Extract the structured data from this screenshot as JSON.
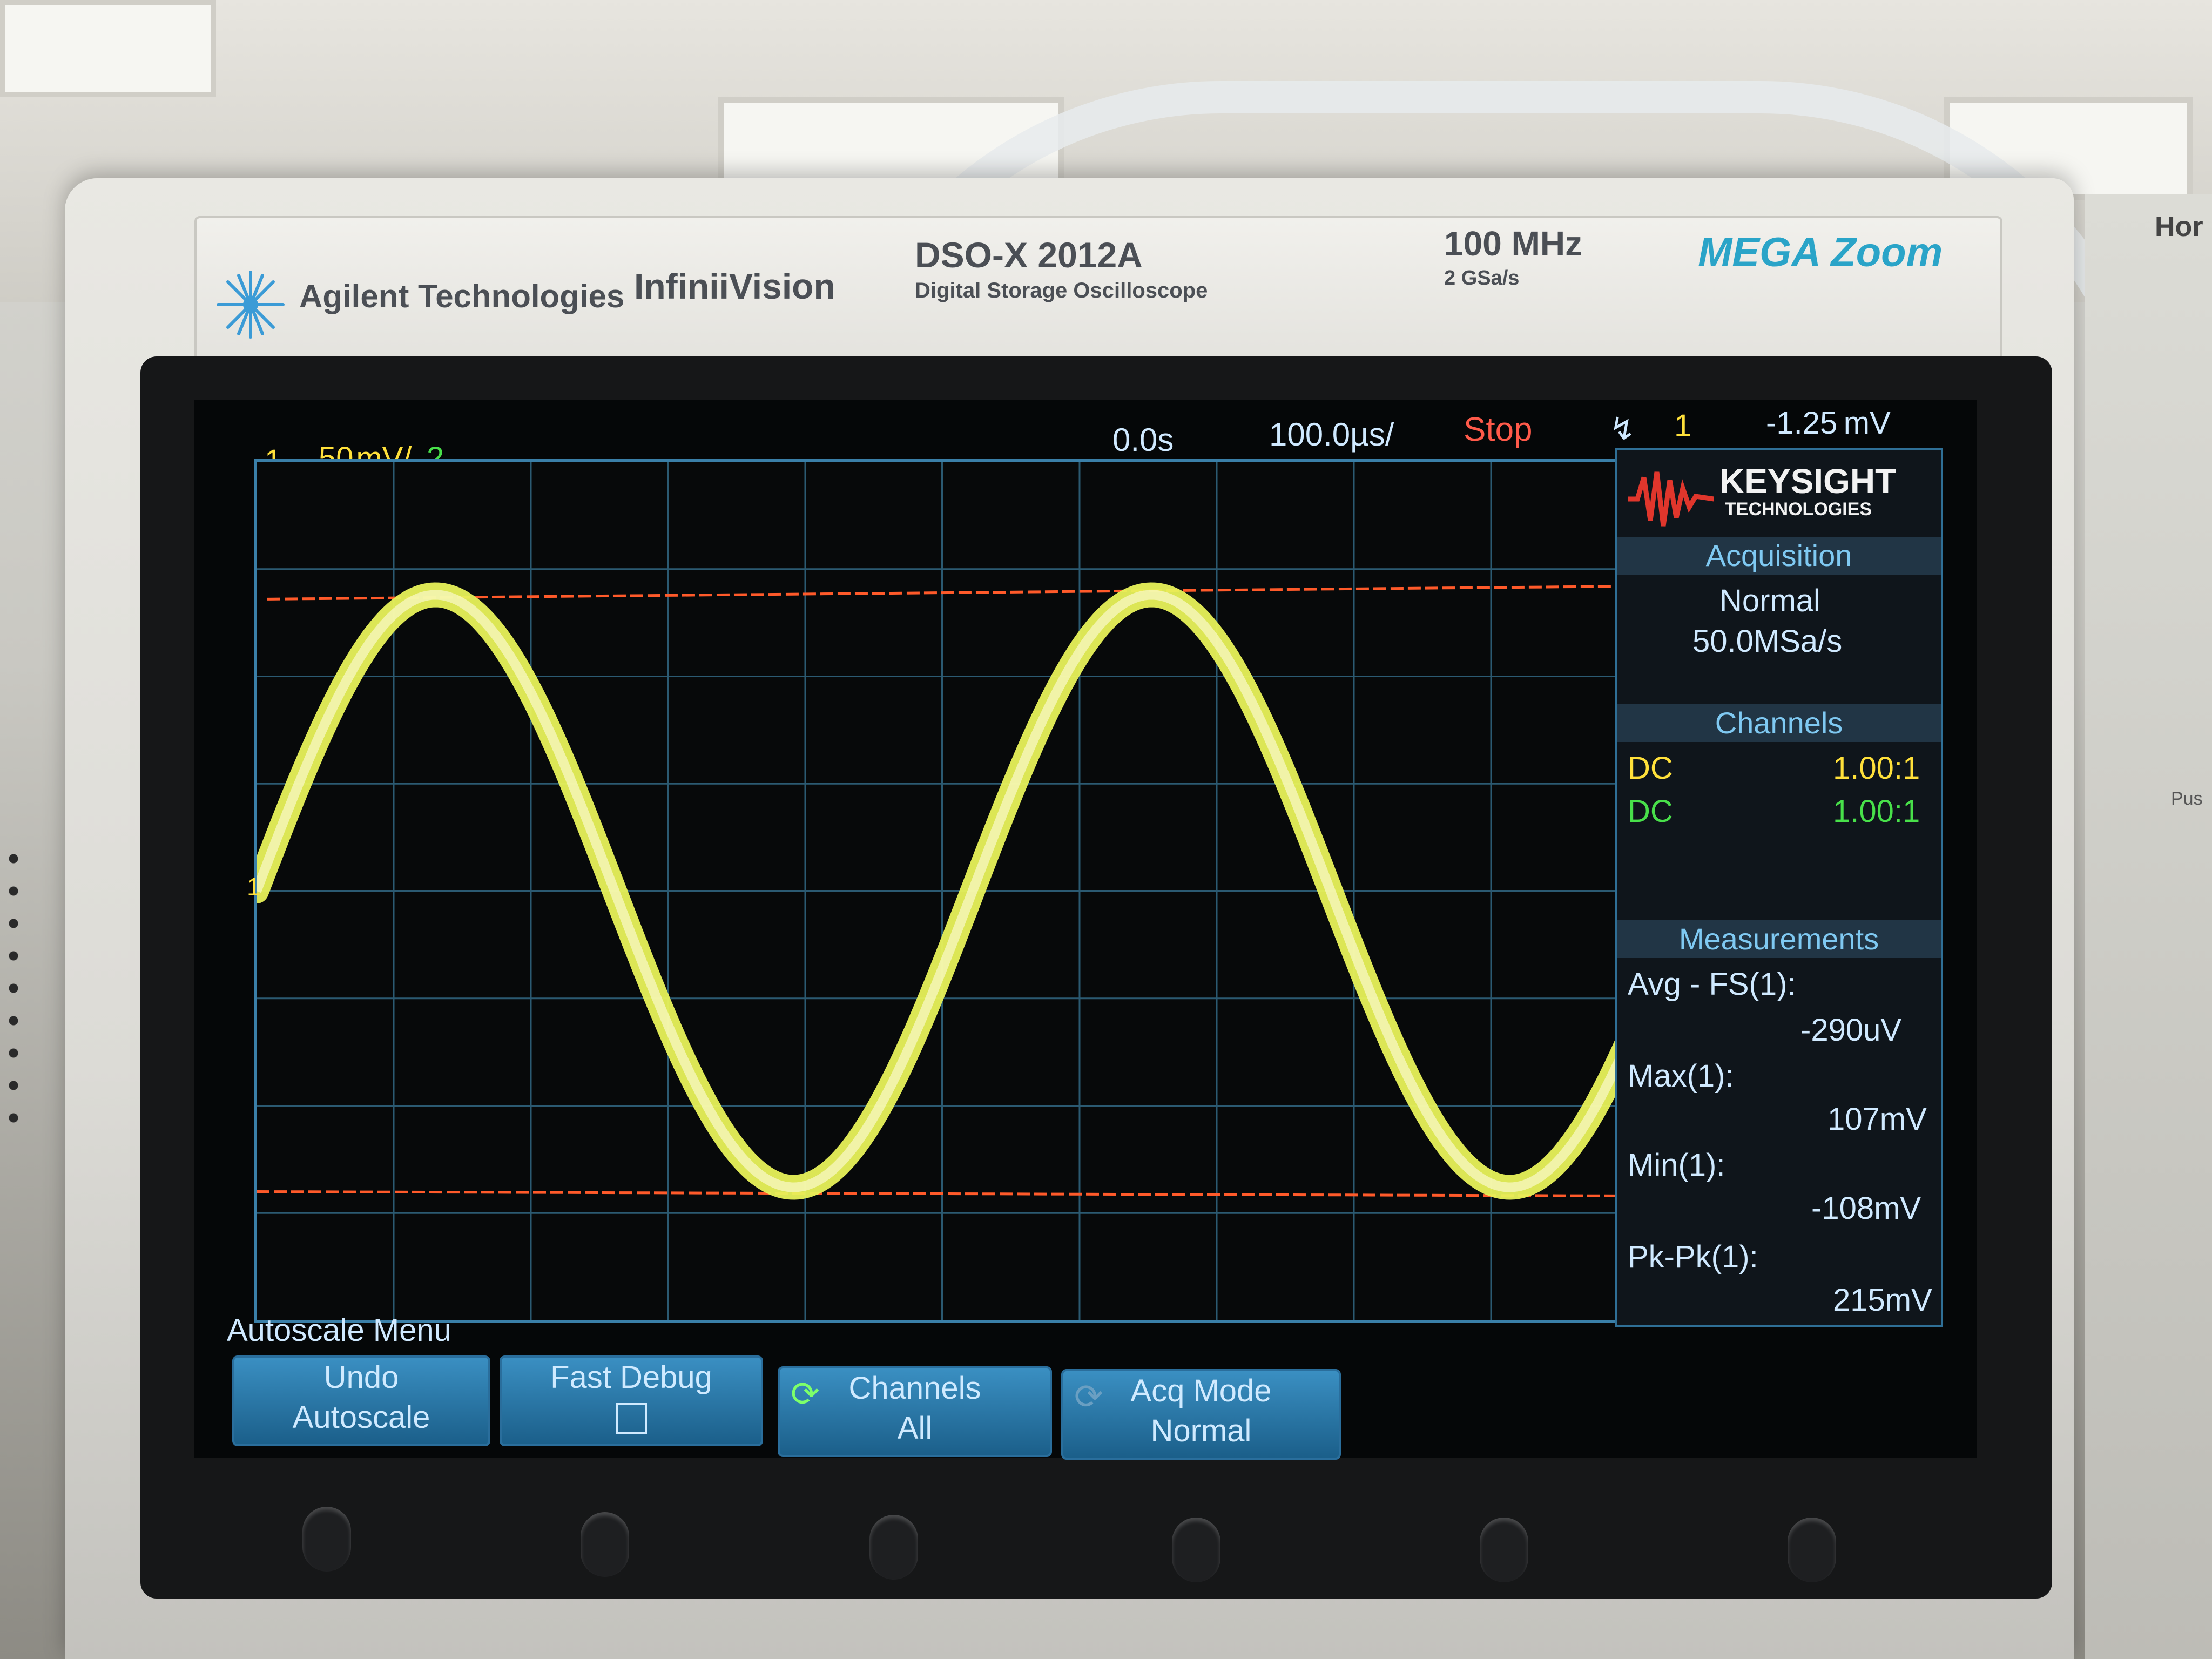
{
  "brand": {
    "maker": "Agilent Technologies",
    "series": "InfiniiVision",
    "model": "DSO-X 2012A",
    "model_desc": "Digital Storage Oscilloscope",
    "bandwidth": "100 MHz",
    "sample_rate": "2 GSa/s",
    "feature_logo": "MEGA Zoom",
    "side_label": "Hor",
    "side_label2": "Pus"
  },
  "topbar": {
    "ch1_label": "1",
    "ch1_scale": "50 ̲m V/",
    "ch2_label": "2",
    "time_delay": "0.0s",
    "time_scale": "100.0µs/",
    "run_state": "Stop",
    "trigger_icon": "trigger-edge-icon",
    "trigger_source": "1",
    "trigger_level": "-1.25 mV"
  },
  "display": {
    "ground_marker": "1",
    "trace_color": "#e8f25a",
    "cursor_color": "#ff5a2a",
    "grid_color": "#2b5a72"
  },
  "right_panel": {
    "logo_main": "KEYSIGHT",
    "logo_sub": "TECHNOLOGIES",
    "acquisition": {
      "title": "Acquisition",
      "mode": "Normal",
      "rate": "50.0MSa/s"
    },
    "channels": {
      "title": "Channels",
      "rows": [
        {
          "coupling": "DC",
          "probe": "1.00:1",
          "color": "#ffe03a"
        },
        {
          "coupling": "DC",
          "probe": "1.00:1",
          "color": "#48e04a"
        }
      ]
    },
    "measurements": {
      "title": "Measurements",
      "items": [
        {
          "label": "Avg - FS(1):",
          "value": "-290uV"
        },
        {
          "label": "Max(1):",
          "value": "107mV"
        },
        {
          "label": "Min(1):",
          "value": "-108mV"
        },
        {
          "label": "Pk-Pk(1):",
          "value": "215mV"
        }
      ]
    }
  },
  "softkeys": {
    "menu_title": "Autoscale Menu",
    "keys": [
      {
        "line1": "Undo",
        "line2": "Autoscale"
      },
      {
        "line1": "Fast Debug",
        "line2": ""
      },
      {
        "line1": "Channels",
        "line2": "All"
      },
      {
        "line1": "Acq Mode",
        "line2": "Normal"
      }
    ]
  }
}
